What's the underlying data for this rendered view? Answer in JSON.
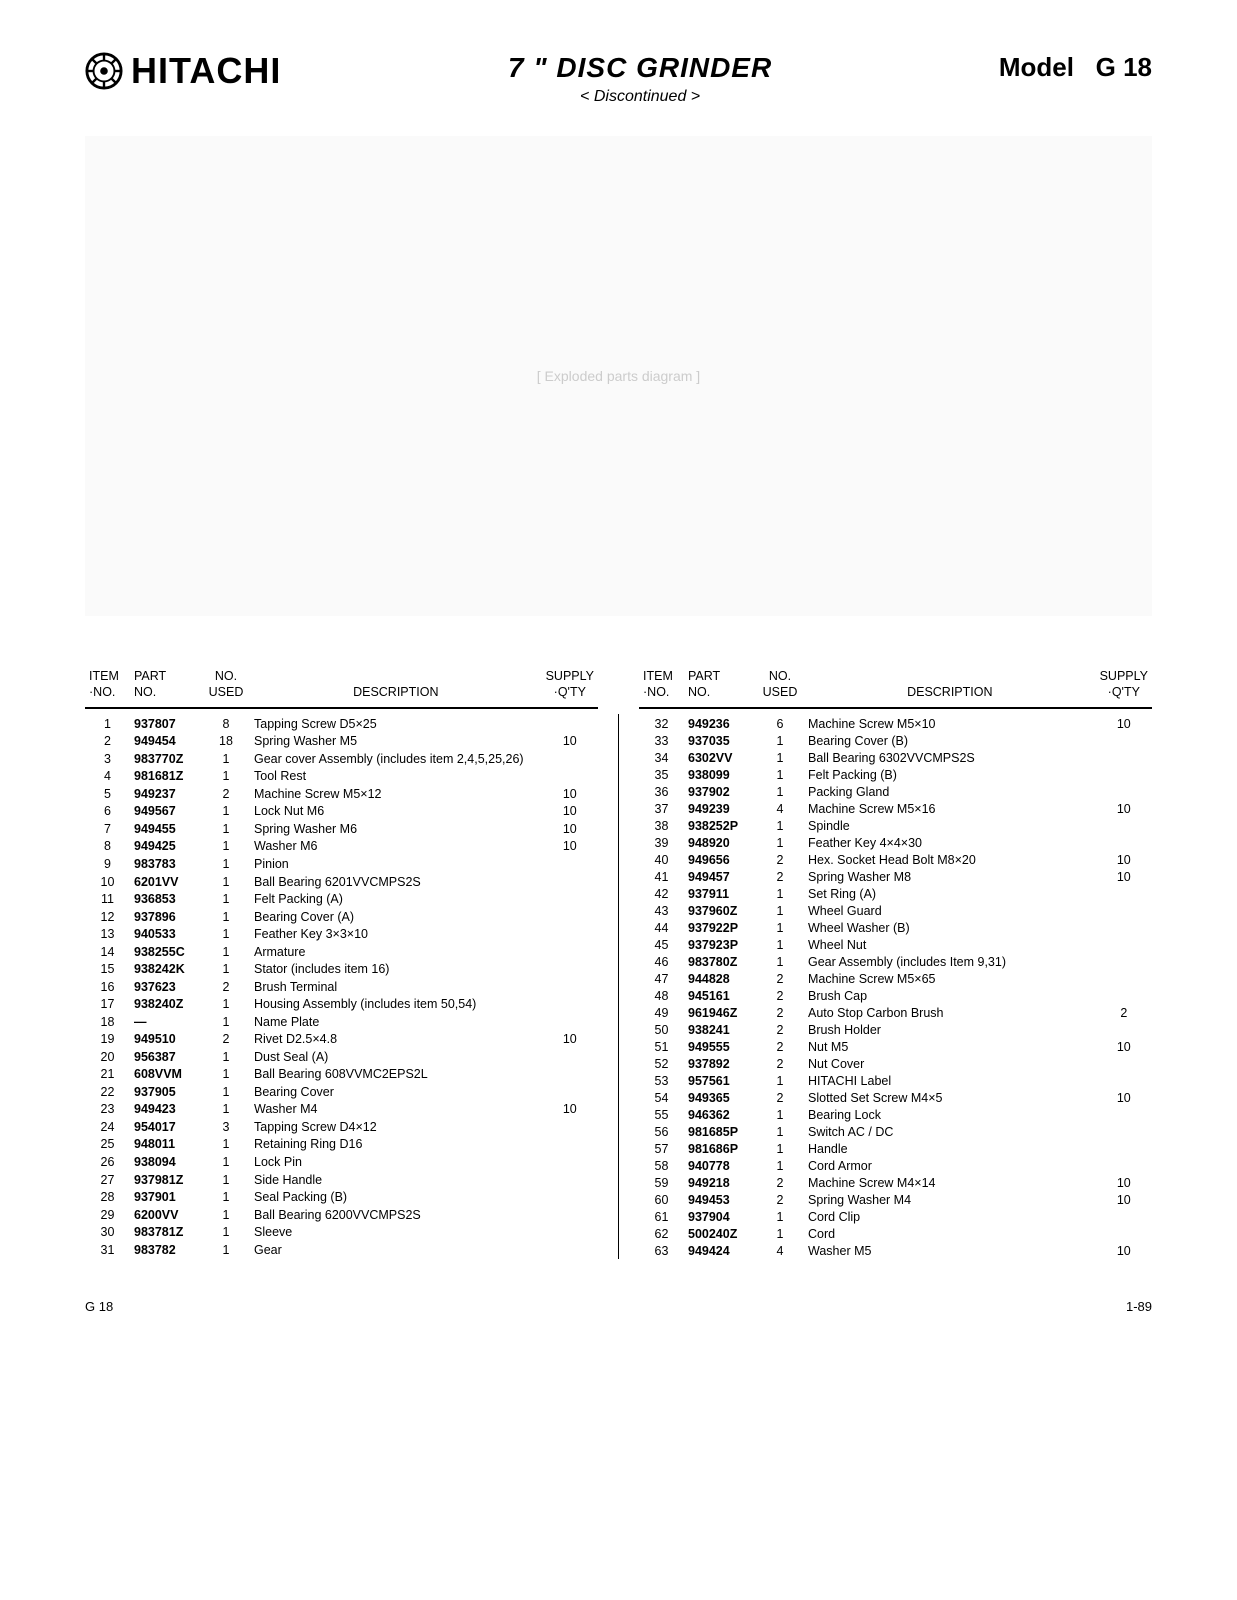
{
  "header": {
    "brand": "HITACHI",
    "title": "7 \"  DISC  GRINDER",
    "subtitle": "< Discontinued >",
    "model_label": "Model",
    "model_value": "G 18"
  },
  "diagram_placeholder": "[ Exploded parts diagram ]",
  "table_headers": {
    "item": "ITEM\n·NO.",
    "part": "PART\nNO.",
    "used": "NO.\nUSED",
    "desc": "DESCRIPTION",
    "qty": "SUPPLY\n·Q'TY"
  },
  "parts_left": [
    {
      "item": "1",
      "part": "937807",
      "used": "8",
      "desc": "Tapping Screw D5×25",
      "qty": ""
    },
    {
      "item": "2",
      "part": "949454",
      "used": "18",
      "desc": "Spring Washer  M5",
      "qty": "10"
    },
    {
      "item": "3",
      "part": "983770Z",
      "used": "1",
      "desc": "Gear cover Assembly (includes item 2,4,5,25,26)",
      "qty": ""
    },
    {
      "item": "4",
      "part": "981681Z",
      "used": "1",
      "desc": "Tool Rest",
      "qty": ""
    },
    {
      "item": "5",
      "part": "949237",
      "used": "2",
      "desc": "Machine Screw  M5×12",
      "qty": "10"
    },
    {
      "item": "6",
      "part": "949567",
      "used": "1",
      "desc": "Lock Nut  M6",
      "qty": "10"
    },
    {
      "item": "7",
      "part": "949455",
      "used": "1",
      "desc": "Spring Washer  M6",
      "qty": "10"
    },
    {
      "item": "8",
      "part": "949425",
      "used": "1",
      "desc": "Washer  M6",
      "qty": "10"
    },
    {
      "item": "9",
      "part": "983783",
      "used": "1",
      "desc": "Pinion",
      "qty": ""
    },
    {
      "item": "10",
      "part": "6201VV",
      "used": "1",
      "desc": "Ball Bearing  6201VVCMPS2S",
      "qty": ""
    },
    {
      "item": "11",
      "part": "936853",
      "used": "1",
      "desc": "Felt Packing (A)",
      "qty": ""
    },
    {
      "item": "12",
      "part": "937896",
      "used": "1",
      "desc": "Bearing Cover (A)",
      "qty": ""
    },
    {
      "item": "13",
      "part": "940533",
      "used": "1",
      "desc": "Feather Key  3×3×10",
      "qty": ""
    },
    {
      "item": "14",
      "part": "938255C",
      "used": "1",
      "desc": "Armature",
      "qty": ""
    },
    {
      "item": "15",
      "part": "938242K",
      "used": "1",
      "desc": "Stator (includes item 16)",
      "qty": ""
    },
    {
      "item": "16",
      "part": "937623",
      "used": "2",
      "desc": "Brush Terminal",
      "qty": ""
    },
    {
      "item": "17",
      "part": "938240Z",
      "used": "1",
      "desc": "Housing Assembly (includes item 50,54)",
      "qty": ""
    },
    {
      "item": "18",
      "part": "—",
      "used": "1",
      "desc": "Name Plate",
      "qty": ""
    },
    {
      "item": "19",
      "part": "949510",
      "used": "2",
      "desc": "Rivet  D2.5×4.8",
      "qty": "10"
    },
    {
      "item": "20",
      "part": "956387",
      "used": "1",
      "desc": "Dust Seal (A)",
      "qty": ""
    },
    {
      "item": "21",
      "part": "608VVM",
      "used": "1",
      "desc": "Ball Bearing  608VVMC2EPS2L",
      "qty": ""
    },
    {
      "item": "22",
      "part": "937905",
      "used": "1",
      "desc": "Bearing Cover",
      "qty": ""
    },
    {
      "item": "23",
      "part": "949423",
      "used": "1",
      "desc": "Washer  M4",
      "qty": "10"
    },
    {
      "item": "24",
      "part": "954017",
      "used": "3",
      "desc": "Tapping Screw D4×12",
      "qty": ""
    },
    {
      "item": "25",
      "part": "948011",
      "used": "1",
      "desc": "Retaining Ring  D16",
      "qty": ""
    },
    {
      "item": "26",
      "part": "938094",
      "used": "1",
      "desc": "Lock Pin",
      "qty": ""
    },
    {
      "item": "27",
      "part": "937981Z",
      "used": "1",
      "desc": "Side Handle",
      "qty": ""
    },
    {
      "item": "28",
      "part": "937901",
      "used": "1",
      "desc": "Seal Packing (B)",
      "qty": ""
    },
    {
      "item": "29",
      "part": "6200VV",
      "used": "1",
      "desc": "Ball Bearing  6200VVCMPS2S",
      "qty": ""
    },
    {
      "item": "30",
      "part": "983781Z",
      "used": "1",
      "desc": "Sleeve",
      "qty": ""
    },
    {
      "item": "31",
      "part": "983782",
      "used": "1",
      "desc": "Gear",
      "qty": ""
    }
  ],
  "parts_right": [
    {
      "item": "32",
      "part": "949236",
      "used": "6",
      "desc": "Machine Screw  M5×10",
      "qty": "10"
    },
    {
      "item": "33",
      "part": "937035",
      "used": "1",
      "desc": "Bearing Cover (B)",
      "qty": ""
    },
    {
      "item": "34",
      "part": "6302VV",
      "used": "1",
      "desc": "Ball Bearing  6302VVCMPS2S",
      "qty": ""
    },
    {
      "item": "35",
      "part": "938099",
      "used": "1",
      "desc": "Felt Packing (B)",
      "qty": ""
    },
    {
      "item": "36",
      "part": "937902",
      "used": "1",
      "desc": "Packing Gland",
      "qty": ""
    },
    {
      "item": "37",
      "part": "949239",
      "used": "4",
      "desc": "Machine Screw  M5×16",
      "qty": "10"
    },
    {
      "item": "38",
      "part": "938252P",
      "used": "1",
      "desc": "Spindle",
      "qty": ""
    },
    {
      "item": "39",
      "part": "948920",
      "used": "1",
      "desc": "Feather Key  4×4×30",
      "qty": ""
    },
    {
      "item": "40",
      "part": "949656",
      "used": "2",
      "desc": "Hex. Socket Head Bolt  M8×20",
      "qty": "10"
    },
    {
      "item": "41",
      "part": "949457",
      "used": "2",
      "desc": "Spring Washer  M8",
      "qty": "10"
    },
    {
      "item": "42",
      "part": "937911",
      "used": "1",
      "desc": "Set Ring (A)",
      "qty": ""
    },
    {
      "item": "43",
      "part": "937960Z",
      "used": "1",
      "desc": "Wheel Guard",
      "qty": ""
    },
    {
      "item": "44",
      "part": "937922P",
      "used": "1",
      "desc": "Wheel Washer (B)",
      "qty": ""
    },
    {
      "item": "45",
      "part": "937923P",
      "used": "1",
      "desc": "Wheel Nut",
      "qty": ""
    },
    {
      "item": "46",
      "part": "983780Z",
      "used": "1",
      "desc": "Gear Assembly (includes Item 9,31)",
      "qty": ""
    },
    {
      "item": "47",
      "part": "944828",
      "used": "2",
      "desc": "Machine Screw  M5×65",
      "qty": ""
    },
    {
      "item": "48",
      "part": "945161",
      "used": "2",
      "desc": "Brush Cap",
      "qty": ""
    },
    {
      "item": "49",
      "part": "961946Z",
      "used": "2",
      "desc": "Auto Stop Carbon Brush",
      "qty": "2"
    },
    {
      "item": "50",
      "part": "938241",
      "used": "2",
      "desc": "Brush Holder",
      "qty": ""
    },
    {
      "item": "51",
      "part": "949555",
      "used": "2",
      "desc": "Nut  M5",
      "qty": "10"
    },
    {
      "item": "52",
      "part": "937892",
      "used": "2",
      "desc": "Nut Cover",
      "qty": ""
    },
    {
      "item": "53",
      "part": "957561",
      "used": "1",
      "desc": "HITACHI Label",
      "qty": ""
    },
    {
      "item": "54",
      "part": "949365",
      "used": "2",
      "desc": "Slotted Set Screw  M4×5",
      "qty": "10"
    },
    {
      "item": "55",
      "part": "946362",
      "used": "1",
      "desc": "Bearing Lock",
      "qty": ""
    },
    {
      "item": "56",
      "part": "981685P",
      "used": "1",
      "desc": "Switch  AC / DC",
      "qty": ""
    },
    {
      "item": "57",
      "part": "981686P",
      "used": "1",
      "desc": "Handle",
      "qty": ""
    },
    {
      "item": "58",
      "part": "940778",
      "used": "1",
      "desc": "Cord Armor",
      "qty": ""
    },
    {
      "item": "59",
      "part": "949218",
      "used": "2",
      "desc": "Machine Screw  M4×14",
      "qty": "10"
    },
    {
      "item": "60",
      "part": "949453",
      "used": "2",
      "desc": "Spring Washer  M4",
      "qty": "10"
    },
    {
      "item": "61",
      "part": "937904",
      "used": "1",
      "desc": "Cord Clip",
      "qty": ""
    },
    {
      "item": "62",
      "part": "500240Z",
      "used": "1",
      "desc": "Cord",
      "qty": ""
    },
    {
      "item": "63",
      "part": "949424",
      "used": "4",
      "desc": "Washer  M5",
      "qty": "10"
    }
  ],
  "footer": {
    "left": "G 18",
    "right": "1-89"
  }
}
